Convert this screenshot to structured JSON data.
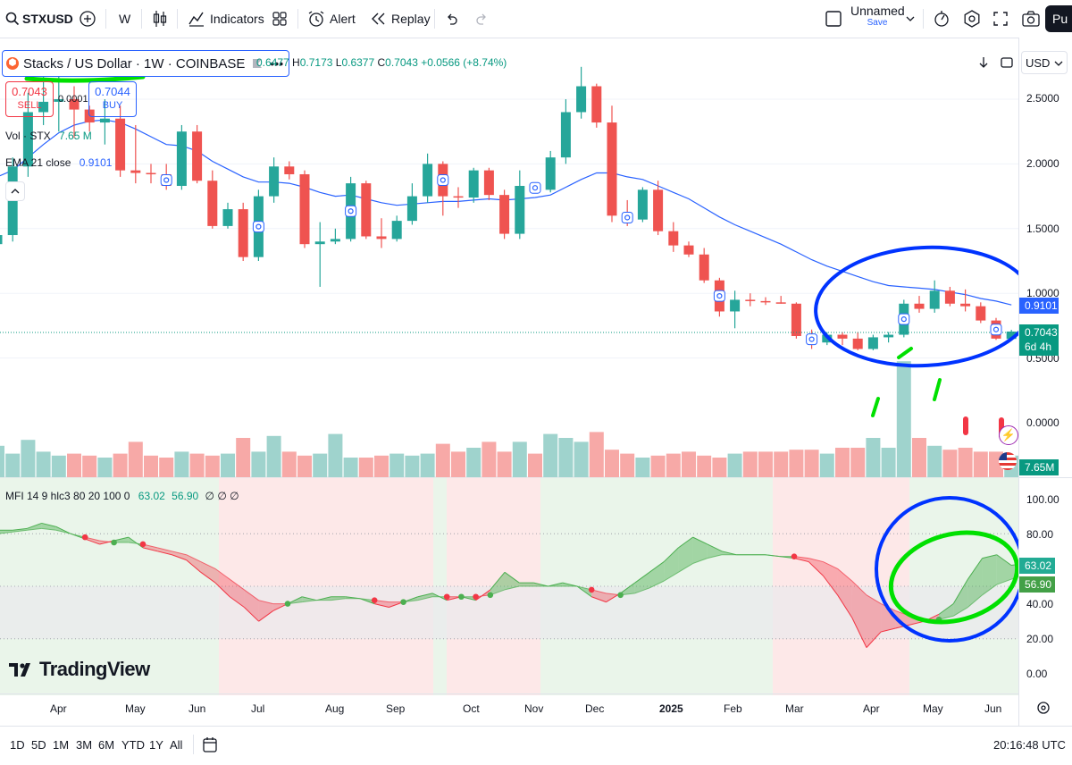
{
  "toolbar": {
    "symbol": "STXUSD",
    "interval": "W",
    "indicators_label": "Indicators",
    "alert_label": "Alert",
    "replay_label": "Replay",
    "layout_name": "Unnamed",
    "save_label": "Save",
    "publish_label": "Pu"
  },
  "legend": {
    "title": "Stacks / US Dollar · 1W · COINBASE",
    "ohlc": {
      "o": "0.6477",
      "h": "0.7173",
      "l": "0.6377",
      "c": "0.7043",
      "change": "+0.0566 (+8.74%)"
    },
    "sell_price": "0.7043",
    "sell_label": "SELL",
    "buy_price": "0.7044",
    "buy_label": "BUY",
    "spread": "0.0001",
    "volume_label": "Vol · STX",
    "volume_value": "7.65 M",
    "ema_label": "EMA 21 close",
    "ema_value": "0.9101",
    "mfi_label": "MFI 14 9 hlc3 80 20 100 0",
    "mfi_v1": "63.02",
    "mfi_v2": "56.90",
    "mfi_rest": "∅  ∅  ∅"
  },
  "price_axis": {
    "currency": "USD",
    "ticks": [
      "2.5000",
      "2.0000",
      "1.5000",
      "1.0000",
      "0.5000",
      "0.0000"
    ],
    "ema_badge": "0.9101",
    "price_badge": "0.7043",
    "countdown": "6d 4h",
    "volume_badge": "7.65M"
  },
  "mfi_axis": {
    "ticks": [
      "100.00",
      "80.00",
      "40.00",
      "20.00",
      "0.00"
    ],
    "badge1": "63.02",
    "badge2": "56.90"
  },
  "time_axis": [
    "Apr",
    "May",
    "Jun",
    "Jul",
    "Aug",
    "Sep",
    "Oct",
    "Nov",
    "Dec",
    "2025",
    "Feb",
    "Mar",
    "Apr",
    "May",
    "Jun"
  ],
  "bottom": {
    "ranges": [
      "1D",
      "5D",
      "1M",
      "3M",
      "6M",
      "YTD",
      "1Y",
      "All"
    ],
    "clock": "20:16:48 UTC"
  },
  "brand": "TradingView",
  "colors": {
    "up": "#26a69a",
    "down": "#ef5350",
    "ema": "#2962ff",
    "annotation_blue": "#0033ff",
    "annotation_green": "#00e000"
  },
  "chart_data": [
    {
      "type": "candlestick",
      "title": "Stacks / US Dollar · 1W · COINBASE",
      "ylim": [
        -0.2,
        2.9
      ],
      "candles": [
        {
          "o": 1.38,
          "h": 1.5,
          "l": 1.3,
          "c": 1.45
        },
        {
          "o": 1.45,
          "h": 2.05,
          "l": 1.4,
          "c": 1.98
        },
        {
          "o": 1.98,
          "h": 2.55,
          "l": 1.9,
          "c": 2.4
        },
        {
          "o": 2.4,
          "h": 2.75,
          "l": 2.3,
          "c": 2.48
        },
        {
          "o": 2.48,
          "h": 2.72,
          "l": 2.25,
          "c": 2.5
        },
        {
          "o": 2.5,
          "h": 2.6,
          "l": 2.2,
          "c": 2.42
        },
        {
          "o": 2.42,
          "h": 2.45,
          "l": 2.25,
          "c": 2.32
        },
        {
          "o": 2.32,
          "h": 2.5,
          "l": 2.15,
          "c": 2.35
        },
        {
          "o": 2.35,
          "h": 2.45,
          "l": 1.9,
          "c": 1.95
        },
        {
          "o": 1.95,
          "h": 2.3,
          "l": 1.85,
          "c": 1.93
        },
        {
          "o": 1.93,
          "h": 2.0,
          "l": 1.85,
          "c": 1.92
        },
        {
          "o": 1.92,
          "h": 2.0,
          "l": 1.8,
          "c": 1.83
        },
        {
          "o": 1.83,
          "h": 2.3,
          "l": 1.8,
          "c": 2.25
        },
        {
          "o": 2.25,
          "h": 2.3,
          "l": 1.85,
          "c": 1.87
        },
        {
          "o": 1.87,
          "h": 1.95,
          "l": 1.5,
          "c": 1.52
        },
        {
          "o": 1.52,
          "h": 1.7,
          "l": 1.5,
          "c": 1.65
        },
        {
          "o": 1.65,
          "h": 1.7,
          "l": 1.25,
          "c": 1.28
        },
        {
          "o": 1.28,
          "h": 1.8,
          "l": 1.25,
          "c": 1.75
        },
        {
          "o": 1.75,
          "h": 2.05,
          "l": 1.7,
          "c": 1.98
        },
        {
          "o": 1.98,
          "h": 2.02,
          "l": 1.88,
          "c": 1.92
        },
        {
          "o": 1.92,
          "h": 1.95,
          "l": 1.35,
          "c": 1.38
        },
        {
          "o": 1.38,
          "h": 1.55,
          "l": 1.05,
          "c": 1.4
        },
        {
          "o": 1.4,
          "h": 1.5,
          "l": 1.38,
          "c": 1.42
        },
        {
          "o": 1.42,
          "h": 1.9,
          "l": 1.4,
          "c": 1.85
        },
        {
          "o": 1.85,
          "h": 1.87,
          "l": 1.42,
          "c": 1.44
        },
        {
          "o": 1.44,
          "h": 1.58,
          "l": 1.35,
          "c": 1.42
        },
        {
          "o": 1.42,
          "h": 1.6,
          "l": 1.4,
          "c": 1.56
        },
        {
          "o": 1.56,
          "h": 1.85,
          "l": 1.53,
          "c": 1.75
        },
        {
          "o": 1.75,
          "h": 2.08,
          "l": 1.7,
          "c": 2.0
        },
        {
          "o": 2.0,
          "h": 2.02,
          "l": 1.6,
          "c": 1.75
        },
        {
          "o": 1.75,
          "h": 1.82,
          "l": 1.66,
          "c": 1.74
        },
        {
          "o": 1.74,
          "h": 1.97,
          "l": 1.7,
          "c": 1.95
        },
        {
          "o": 1.95,
          "h": 1.97,
          "l": 1.72,
          "c": 1.76
        },
        {
          "o": 1.76,
          "h": 1.8,
          "l": 1.42,
          "c": 1.46
        },
        {
          "o": 1.46,
          "h": 1.95,
          "l": 1.42,
          "c": 1.83
        },
        {
          "o": 1.83,
          "h": 1.85,
          "l": 1.78,
          "c": 1.8
        },
        {
          "o": 1.8,
          "h": 2.1,
          "l": 1.78,
          "c": 2.05
        },
        {
          "o": 2.05,
          "h": 2.5,
          "l": 2.0,
          "c": 2.4
        },
        {
          "o": 2.4,
          "h": 2.75,
          "l": 2.35,
          "c": 2.6
        },
        {
          "o": 2.6,
          "h": 2.62,
          "l": 2.28,
          "c": 2.32
        },
        {
          "o": 2.32,
          "h": 2.45,
          "l": 1.55,
          "c": 1.6
        },
        {
          "o": 1.6,
          "h": 1.72,
          "l": 1.52,
          "c": 1.57
        },
        {
          "o": 1.57,
          "h": 1.82,
          "l": 1.55,
          "c": 1.8
        },
        {
          "o": 1.8,
          "h": 1.87,
          "l": 1.45,
          "c": 1.48
        },
        {
          "o": 1.48,
          "h": 1.55,
          "l": 1.32,
          "c": 1.37
        },
        {
          "o": 1.37,
          "h": 1.4,
          "l": 1.28,
          "c": 1.3
        },
        {
          "o": 1.3,
          "h": 1.35,
          "l": 1.08,
          "c": 1.1
        },
        {
          "o": 1.1,
          "h": 1.12,
          "l": 0.82,
          "c": 0.86
        },
        {
          "o": 0.86,
          "h": 1.02,
          "l": 0.73,
          "c": 0.95
        },
        {
          "o": 0.95,
          "h": 1.0,
          "l": 0.9,
          "c": 0.94
        },
        {
          "o": 0.94,
          "h": 0.97,
          "l": 0.91,
          "c": 0.93
        },
        {
          "o": 0.93,
          "h": 0.98,
          "l": 0.92,
          "c": 0.92
        },
        {
          "o": 0.92,
          "h": 0.93,
          "l": 0.65,
          "c": 0.67
        },
        {
          "o": 0.67,
          "h": 0.72,
          "l": 0.57,
          "c": 0.62
        },
        {
          "o": 0.62,
          "h": 0.7,
          "l": 0.6,
          "c": 0.68
        },
        {
          "o": 0.68,
          "h": 0.7,
          "l": 0.6,
          "c": 0.65
        },
        {
          "o": 0.65,
          "h": 0.7,
          "l": 0.56,
          "c": 0.57
        },
        {
          "o": 0.57,
          "h": 0.68,
          "l": 0.56,
          "c": 0.66
        },
        {
          "o": 0.66,
          "h": 0.7,
          "l": 0.62,
          "c": 0.68
        },
        {
          "o": 0.68,
          "h": 0.95,
          "l": 0.66,
          "c": 0.92
        },
        {
          "o": 0.92,
          "h": 0.98,
          "l": 0.85,
          "c": 0.88
        },
        {
          "o": 0.88,
          "h": 1.1,
          "l": 0.85,
          "c": 1.02
        },
        {
          "o": 1.02,
          "h": 1.05,
          "l": 0.9,
          "c": 0.92
        },
        {
          "o": 0.92,
          "h": 1.03,
          "l": 0.86,
          "c": 0.9
        },
        {
          "o": 0.9,
          "h": 0.93,
          "l": 0.77,
          "c": 0.79
        },
        {
          "o": 0.79,
          "h": 0.81,
          "l": 0.64,
          "c": 0.65
        },
        {
          "o": 0.6477,
          "h": 0.7173,
          "l": 0.6377,
          "c": 0.7043
        }
      ],
      "ema21": [
        1.9,
        1.95,
        2.05,
        2.15,
        2.24,
        2.3,
        2.33,
        2.34,
        2.32,
        2.27,
        2.21,
        2.15,
        2.14,
        2.1,
        2.02,
        1.96,
        1.9,
        1.86,
        1.86,
        1.85,
        1.82,
        1.78,
        1.75,
        1.76,
        1.73,
        1.7,
        1.68,
        1.69,
        1.7,
        1.71,
        1.71,
        1.72,
        1.73,
        1.72,
        1.73,
        1.74,
        1.76,
        1.82,
        1.88,
        1.93,
        1.93,
        1.9,
        1.88,
        1.83,
        1.78,
        1.73,
        1.66,
        1.59,
        1.53,
        1.48,
        1.43,
        1.38,
        1.32,
        1.26,
        1.21,
        1.17,
        1.13,
        1.09,
        1.06,
        1.05,
        1.04,
        1.03,
        1.01,
        0.99,
        0.96,
        0.94,
        0.9101
      ],
      "volume": [
        1.6,
        1.2,
        1.9,
        1.3,
        1.1,
        1.2,
        1.1,
        1.0,
        1.2,
        1.8,
        1.1,
        1.0,
        1.3,
        1.2,
        1.1,
        1.2,
        2.0,
        1.3,
        2.1,
        1.3,
        1.1,
        1.2,
        2.2,
        1.0,
        1.0,
        1.1,
        1.2,
        1.1,
        1.2,
        1.7,
        1.3,
        1.5,
        1.8,
        1.3,
        1.8,
        1.2,
        2.2,
        2.0,
        1.8,
        2.3,
        1.4,
        1.2,
        1.0,
        1.1,
        1.2,
        1.3,
        1.1,
        1.0,
        1.2,
        1.3,
        1.3,
        1.3,
        1.4,
        1.4,
        1.2,
        1.5,
        1.5,
        2.0,
        1.5,
        5.9,
        2.0,
        1.6,
        1.4,
        1.5,
        1.3,
        1.3,
        1.1
      ],
      "volume_badge_value": 7.65
    },
    {
      "type": "area",
      "title": "MFI 14 9 hlc3 80 20 100 0",
      "ylim": [
        0,
        100
      ],
      "levels": [
        80,
        50,
        20
      ],
      "mfi": [
        82,
        82,
        83,
        86,
        84,
        80,
        77,
        74,
        76,
        78,
        72,
        70,
        68,
        65,
        58,
        52,
        44,
        38,
        30,
        36,
        40,
        44,
        42,
        44,
        44,
        43,
        40,
        38,
        41,
        44,
        46,
        42,
        44,
        42,
        48,
        58,
        52,
        52,
        50,
        52,
        50,
        44,
        41,
        46,
        52,
        58,
        64,
        72,
        78,
        74,
        70,
        68,
        68,
        68,
        67,
        66,
        64,
        56,
        45,
        32,
        15,
        24,
        26,
        28,
        30,
        34,
        40,
        54,
        66,
        68,
        62,
        63.02
      ],
      "signal": [
        80,
        81,
        82,
        83,
        82,
        80,
        78,
        76,
        75,
        75,
        74,
        72,
        70,
        68,
        64,
        60,
        54,
        48,
        42,
        40,
        40,
        41,
        42,
        42,
        43,
        43,
        42,
        41,
        41,
        42,
        44,
        44,
        44,
        44,
        45,
        48,
        50,
        50,
        50,
        50,
        50,
        48,
        46,
        45,
        46,
        49,
        53,
        58,
        63,
        66,
        68,
        68,
        68,
        68,
        67,
        67,
        66,
        64,
        60,
        53,
        45,
        40,
        36,
        33,
        31,
        31,
        33,
        38,
        45,
        51,
        54,
        56.9
      ]
    }
  ]
}
